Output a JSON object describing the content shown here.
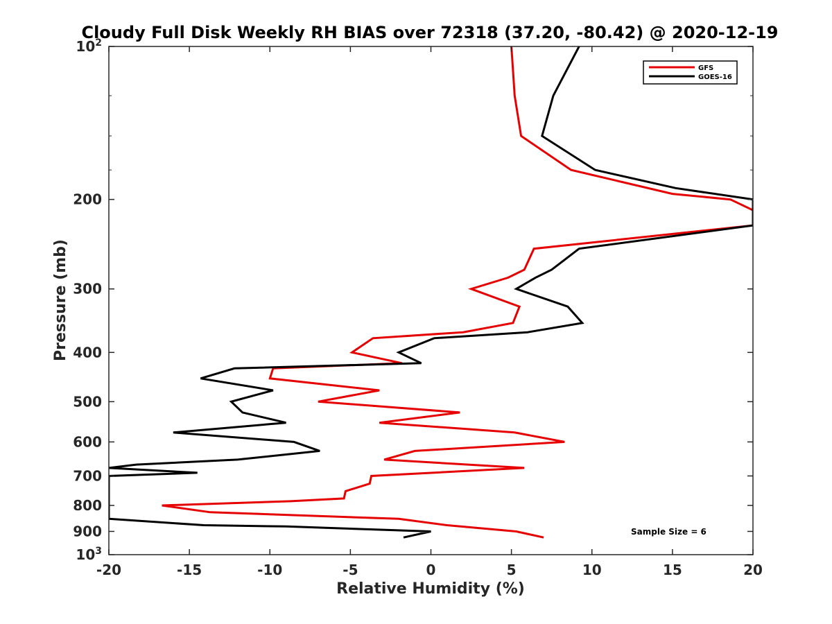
{
  "chart_data": {
    "type": "line",
    "title": "Cloudy Full Disk Weekly RH BIAS over 72318 (37.20, -80.42) @ 2020-12-19",
    "xlabel": "Relative Humidity (%)",
    "ylabel": "Pressure (mb)",
    "xlim": [
      -20,
      20
    ],
    "ylim": [
      1000,
      100
    ],
    "yscale": "log",
    "x_ticks": [
      -20,
      -15,
      -10,
      -5,
      0,
      5,
      10,
      15,
      20
    ],
    "x_tick_labels": [
      "-20",
      "-15",
      "-10",
      "-5",
      "0",
      "5",
      "10",
      "15",
      "20"
    ],
    "y_ticks": [
      {
        "value": 100,
        "label": "10",
        "exp": "2"
      },
      {
        "value": 200,
        "label": "200"
      },
      {
        "value": 300,
        "label": "300"
      },
      {
        "value": 400,
        "label": "400"
      },
      {
        "value": 500,
        "label": "500"
      },
      {
        "value": 600,
        "label": "600"
      },
      {
        "value": 700,
        "label": "700"
      },
      {
        "value": 800,
        "label": "800"
      },
      {
        "value": 900,
        "label": "900"
      },
      {
        "value": 1000,
        "label": "10",
        "exp": "3"
      }
    ],
    "legend_position": "top-right",
    "annotation": "Sample Size = 6",
    "series": [
      {
        "name": "GFS",
        "color": "#e60000",
        "points": [
          [
            5.0,
            100
          ],
          [
            5.2,
            125
          ],
          [
            5.6,
            150
          ],
          [
            8.7,
            175
          ],
          [
            15.0,
            195
          ],
          [
            18.6,
            200
          ],
          [
            20.0,
            210
          ],
          [
            20.0,
            225
          ],
          [
            6.4,
            250
          ],
          [
            5.8,
            275
          ],
          [
            4.8,
            285
          ],
          [
            2.5,
            300
          ],
          [
            5.5,
            325
          ],
          [
            5.1,
            350
          ],
          [
            2.0,
            365
          ],
          [
            -3.6,
            375
          ],
          [
            -4.9,
            400
          ],
          [
            -1.8,
            420
          ],
          [
            -9.8,
            430
          ],
          [
            -10.0,
            450
          ],
          [
            -3.2,
            475
          ],
          [
            -7.0,
            500
          ],
          [
            1.8,
            525
          ],
          [
            -3.2,
            550
          ],
          [
            5.2,
            575
          ],
          [
            8.3,
            600
          ],
          [
            -1.0,
            625
          ],
          [
            -2.9,
            650
          ],
          [
            5.8,
            675
          ],
          [
            -3.7,
            700
          ],
          [
            -3.8,
            725
          ],
          [
            -5.3,
            750
          ],
          [
            -5.4,
            775
          ],
          [
            -8.7,
            785
          ],
          [
            -16.7,
            800
          ],
          [
            -13.7,
            825
          ],
          [
            -2.0,
            850
          ],
          [
            1.0,
            875
          ],
          [
            5.3,
            900
          ],
          [
            7.0,
            925
          ]
        ]
      },
      {
        "name": "GOES-16",
        "color": "#000000",
        "points": [
          [
            9.2,
            100
          ],
          [
            7.6,
            125
          ],
          [
            6.9,
            150
          ],
          [
            10.2,
            175
          ],
          [
            15.2,
            190
          ],
          [
            20.0,
            200
          ],
          [
            20.0,
            225
          ],
          [
            9.2,
            250
          ],
          [
            7.5,
            275
          ],
          [
            6.5,
            285
          ],
          [
            5.3,
            300
          ],
          [
            8.5,
            325
          ],
          [
            9.4,
            350
          ],
          [
            6.0,
            365
          ],
          [
            0.2,
            375
          ],
          [
            -2.0,
            400
          ],
          [
            -0.6,
            420
          ],
          [
            -12.2,
            430
          ],
          [
            -14.3,
            450
          ],
          [
            -9.8,
            475
          ],
          [
            -12.4,
            500
          ],
          [
            -11.7,
            525
          ],
          [
            -9.0,
            550
          ],
          [
            -16.0,
            575
          ],
          [
            -8.5,
            600
          ],
          [
            -6.9,
            625
          ],
          [
            -12.0,
            650
          ],
          [
            -18.3,
            665
          ],
          [
            -20.0,
            675
          ],
          [
            -14.5,
            690
          ],
          [
            -20.0,
            700
          ],
          [
            -20.0,
            725
          ],
          [
            -20.0,
            750
          ],
          [
            -20.0,
            775
          ],
          [
            -20.0,
            800
          ],
          [
            -20.0,
            825
          ],
          [
            -20.0,
            850
          ],
          [
            -14.1,
            875
          ],
          [
            -9.0,
            880
          ],
          [
            0.0,
            900
          ],
          [
            -1.7,
            925
          ]
        ]
      }
    ]
  }
}
